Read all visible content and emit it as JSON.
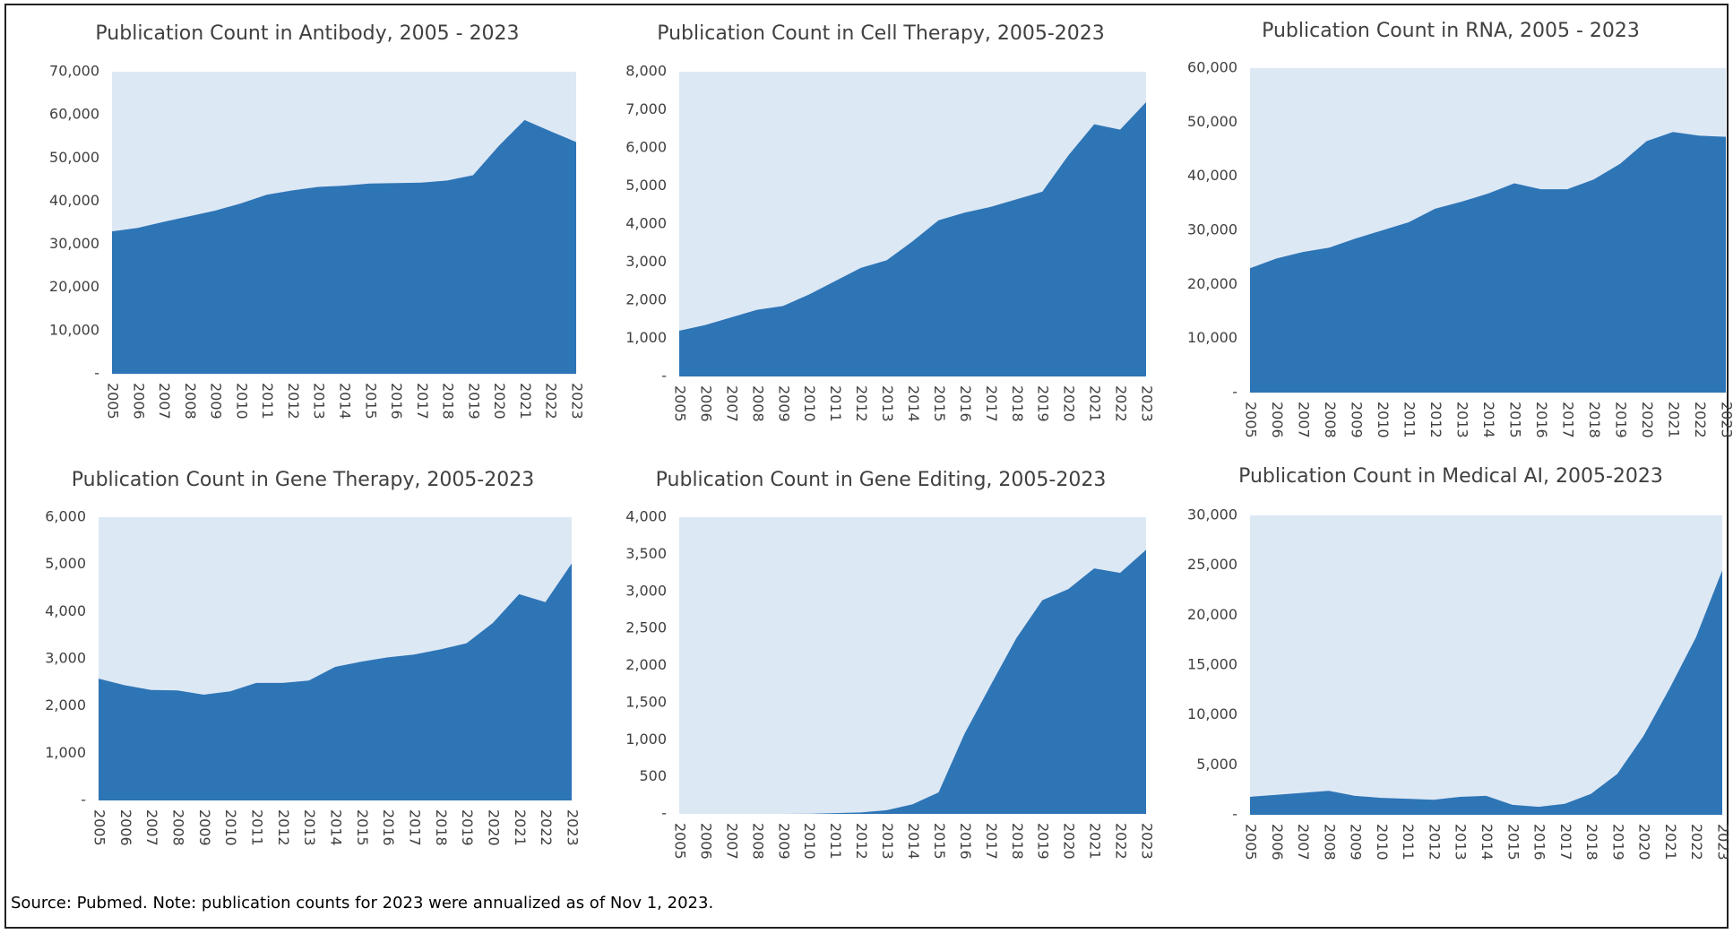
{
  "chart_data": [
    {
      "type": "area",
      "title": "Publication Count in Antibody, 2005 - 2023",
      "categories": [
        "2005",
        "2006",
        "2007",
        "2008",
        "2009",
        "2010",
        "2011",
        "2012",
        "2013",
        "2014",
        "2015",
        "2016",
        "2017",
        "2018",
        "2019",
        "2020",
        "2021",
        "2022",
        "2023"
      ],
      "values": [
        33000,
        33800,
        35200,
        36500,
        37800,
        39500,
        41500,
        42500,
        43300,
        43600,
        44100,
        44200,
        44300,
        44800,
        46000,
        52800,
        58800,
        56200,
        53700
      ],
      "color": "#2e75b6",
      "ylim": [
        0,
        70000
      ],
      "yticks": [
        {
          "value": 0,
          "label": "-"
        },
        {
          "value": 10000,
          "label": "10,000"
        },
        {
          "value": 20000,
          "label": "20,000"
        },
        {
          "value": 30000,
          "label": "30,000"
        },
        {
          "value": 40000,
          "label": "40,000"
        },
        {
          "value": 50000,
          "label": "50,000"
        },
        {
          "value": 60000,
          "label": "60,000"
        },
        {
          "value": 70000,
          "label": "70,000"
        }
      ]
    },
    {
      "type": "area",
      "title": "Publication Count in Cell Therapy, 2005-2023",
      "categories": [
        "2005",
        "2006",
        "2007",
        "2008",
        "2009",
        "2010",
        "2011",
        "2012",
        "2013",
        "2014",
        "2015",
        "2016",
        "2017",
        "2018",
        "2019",
        "2020",
        "2021",
        "2022",
        "2023"
      ],
      "values": [
        1200,
        1350,
        1550,
        1750,
        1850,
        2150,
        2500,
        2850,
        3050,
        3550,
        4100,
        4300,
        4450,
        4650,
        4850,
        5800,
        6620,
        6480,
        7200
      ],
      "color": "#2e75b6",
      "ylim": [
        0,
        8000
      ],
      "yticks": [
        {
          "value": 0,
          "label": "-"
        },
        {
          "value": 1000,
          "label": "1,000"
        },
        {
          "value": 2000,
          "label": "2,000"
        },
        {
          "value": 3000,
          "label": "3,000"
        },
        {
          "value": 4000,
          "label": "4,000"
        },
        {
          "value": 5000,
          "label": "5,000"
        },
        {
          "value": 6000,
          "label": "6,000"
        },
        {
          "value": 7000,
          "label": "7,000"
        },
        {
          "value": 8000,
          "label": "8,000"
        }
      ]
    },
    {
      "type": "area",
      "title": "Publication Count in RNA, 2005 - 2023",
      "categories": [
        "2005",
        "2006",
        "2007",
        "2008",
        "2009",
        "2010",
        "2011",
        "2012",
        "2013",
        "2014",
        "2015",
        "2016",
        "2017",
        "2018",
        "2019",
        "2020",
        "2021",
        "2022",
        "2023"
      ],
      "values": [
        23000,
        24800,
        26000,
        26800,
        28500,
        30000,
        31500,
        34000,
        35300,
        36800,
        38700,
        37600,
        37600,
        39400,
        42300,
        46500,
        48200,
        47500,
        47300
      ],
      "color": "#2e75b6",
      "ylim": [
        0,
        60000
      ],
      "yticks": [
        {
          "value": 0,
          "label": "-"
        },
        {
          "value": 10000,
          "label": "10,000"
        },
        {
          "value": 20000,
          "label": "20,000"
        },
        {
          "value": 30000,
          "label": "30,000"
        },
        {
          "value": 40000,
          "label": "40,000"
        },
        {
          "value": 50000,
          "label": "50,000"
        },
        {
          "value": 60000,
          "label": "60,000"
        }
      ]
    },
    {
      "type": "area",
      "title": "Publication Count in Gene Therapy, 2005-2023",
      "categories": [
        "2005",
        "2006",
        "2007",
        "2008",
        "2009",
        "2010",
        "2011",
        "2012",
        "2013",
        "2014",
        "2015",
        "2016",
        "2017",
        "2018",
        "2019",
        "2020",
        "2021",
        "2022",
        "2023"
      ],
      "values": [
        2580,
        2440,
        2340,
        2330,
        2240,
        2310,
        2490,
        2490,
        2540,
        2830,
        2940,
        3030,
        3090,
        3200,
        3330,
        3760,
        4370,
        4200,
        5020
      ],
      "color": "#2e75b6",
      "ylim": [
        0,
        6000
      ],
      "yticks": [
        {
          "value": 0,
          "label": "-"
        },
        {
          "value": 1000,
          "label": "1,000"
        },
        {
          "value": 2000,
          "label": "2,000"
        },
        {
          "value": 3000,
          "label": "3,000"
        },
        {
          "value": 4000,
          "label": "4,000"
        },
        {
          "value": 5000,
          "label": "5,000"
        },
        {
          "value": 6000,
          "label": "6,000"
        }
      ]
    },
    {
      "type": "area",
      "title": "Publication Count in Gene Editing, 2005-2023",
      "categories": [
        "2005",
        "2006",
        "2007",
        "2008",
        "2009",
        "2010",
        "2011",
        "2012",
        "2013",
        "2014",
        "2015",
        "2016",
        "2017",
        "2018",
        "2019",
        "2020",
        "2021",
        "2022",
        "2023"
      ],
      "values": [
        0,
        0,
        0,
        0,
        0,
        2,
        10,
        20,
        50,
        130,
        290,
        1080,
        1730,
        2370,
        2880,
        3030,
        3310,
        3250,
        3560
      ],
      "color": "#2e75b6",
      "ylim": [
        0,
        4000
      ],
      "yticks": [
        {
          "value": 0,
          "label": "-"
        },
        500,
        {
          "value": 1000,
          "label": "1,000"
        },
        {
          "value": 1500,
          "label": "1,500"
        },
        {
          "value": 2000,
          "label": "2,000"
        },
        {
          "value": 2500,
          "label": "2,500"
        },
        {
          "value": 3000,
          "label": "3,000"
        },
        {
          "value": 3500,
          "label": "3,500"
        },
        {
          "value": 4000,
          "label": "4,000"
        }
      ]
    },
    {
      "type": "area",
      "title": "Publication Count in Medical AI, 2005-2023",
      "categories": [
        "2005",
        "2006",
        "2007",
        "2008",
        "2009",
        "2010",
        "2011",
        "2012",
        "2013",
        "2014",
        "2015",
        "2016",
        "2017",
        "2018",
        "2019",
        "2020",
        "2021",
        "2022",
        "2023"
      ],
      "values": [
        1800,
        2000,
        2200,
        2400,
        1900,
        1700,
        1600,
        1500,
        1800,
        1900,
        1000,
        800,
        1100,
        2100,
        4100,
        7900,
        12700,
        17800,
        24500
      ],
      "color": "#2e75b6",
      "ylim": [
        0,
        30000
      ],
      "yticks": [
        {
          "value": 0,
          "label": "-"
        },
        {
          "value": 5000,
          "label": "5,000"
        },
        {
          "value": 10000,
          "label": "10,000"
        },
        {
          "value": 15000,
          "label": "15,000"
        },
        {
          "value": 20000,
          "label": "20,000"
        },
        {
          "value": 25000,
          "label": "25,000"
        },
        {
          "value": 30000,
          "label": "30,000"
        }
      ]
    }
  ],
  "footer": {
    "source": "Source: Pubmed. Note: publication counts for 2023 were annualized as of Nov 1, 2023."
  }
}
